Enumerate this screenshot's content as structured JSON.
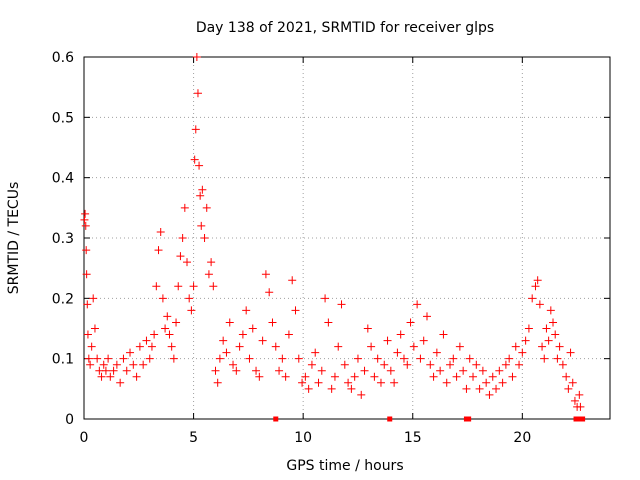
{
  "chart_data": {
    "type": "scatter",
    "title": "Day 138 of 2021, SRMTID for receiver glps",
    "xlabel": "GPS time / hours",
    "ylabel": "SRMTID / TECUs",
    "xlim": [
      0,
      24
    ],
    "ylim": [
      0,
      0.6
    ],
    "xticks": [
      0,
      5,
      10,
      15,
      20
    ],
    "xtick_labels": [
      "0",
      "5",
      "10",
      "15",
      "20"
    ],
    "yticks": [
      0,
      0.1,
      0.2,
      0.3,
      0.4,
      0.5,
      0.6
    ],
    "ytick_labels": [
      "0",
      "0.1",
      "0.2",
      "0.3",
      "0.4",
      "0.5",
      "0.6"
    ],
    "grid": true,
    "marker": "+",
    "color": "#ff0000",
    "series": [
      {
        "name": "SRMTID",
        "x": [
          0.02,
          0.05,
          0.08,
          0.1,
          0.12,
          0.15,
          0.18,
          0.22,
          0.28,
          0.35,
          0.42,
          0.5,
          0.6,
          0.7,
          0.8,
          0.9,
          1.0,
          1.1,
          1.2,
          1.35,
          1.5,
          1.65,
          1.8,
          1.95,
          2.1,
          2.25,
          2.4,
          2.55,
          2.7,
          2.85,
          3.0,
          3.1,
          3.2,
          3.3,
          3.4,
          3.5,
          3.6,
          3.7,
          3.8,
          3.9,
          4.0,
          4.1,
          4.2,
          4.3,
          4.4,
          4.5,
          4.6,
          4.7,
          4.8,
          4.9,
          5.0,
          5.05,
          5.1,
          5.15,
          5.2,
          5.25,
          5.3,
          5.35,
          5.4,
          5.5,
          5.6,
          5.7,
          5.8,
          5.9,
          6.0,
          6.1,
          6.2,
          6.35,
          6.5,
          6.65,
          6.8,
          6.95,
          7.1,
          7.25,
          7.4,
          7.55,
          7.7,
          7.85,
          8.0,
          8.15,
          8.3,
          8.45,
          8.6,
          8.75,
          8.9,
          9.05,
          9.2,
          9.35,
          9.5,
          9.65,
          9.8,
          9.95,
          10.1,
          10.25,
          10.4,
          10.55,
          10.7,
          10.85,
          11.0,
          11.15,
          11.3,
          11.45,
          11.6,
          11.75,
          11.9,
          12.05,
          12.2,
          12.35,
          12.5,
          12.65,
          12.8,
          12.95,
          13.1,
          13.25,
          13.4,
          13.55,
          13.7,
          13.85,
          14.0,
          14.15,
          14.3,
          14.45,
          14.6,
          14.75,
          14.9,
          15.05,
          15.2,
          15.35,
          15.5,
          15.65,
          15.8,
          15.95,
          16.1,
          16.25,
          16.4,
          16.55,
          16.7,
          16.85,
          17.0,
          17.15,
          17.3,
          17.45,
          17.6,
          17.75,
          17.9,
          18.05,
          18.2,
          18.35,
          18.5,
          18.65,
          18.8,
          18.95,
          19.1,
          19.25,
          19.4,
          19.55,
          19.7,
          19.85,
          20.0,
          20.15,
          20.3,
          20.45,
          20.6,
          20.7,
          20.8,
          20.9,
          21.0,
          21.1,
          21.2,
          21.3,
          21.4,
          21.5,
          21.6,
          21.7,
          21.85,
          22.0,
          22.1,
          22.2,
          22.3,
          22.4,
          22.5,
          22.6,
          22.65
        ],
        "y": [
          0.33,
          0.34,
          0.32,
          0.28,
          0.24,
          0.19,
          0.14,
          0.1,
          0.09,
          0.12,
          0.2,
          0.15,
          0.1,
          0.08,
          0.07,
          0.09,
          0.08,
          0.1,
          0.07,
          0.08,
          0.09,
          0.06,
          0.1,
          0.08,
          0.11,
          0.09,
          0.07,
          0.12,
          0.09,
          0.13,
          0.1,
          0.12,
          0.14,
          0.22,
          0.28,
          0.31,
          0.2,
          0.15,
          0.17,
          0.14,
          0.12,
          0.1,
          0.16,
          0.22,
          0.27,
          0.3,
          0.35,
          0.26,
          0.2,
          0.18,
          0.22,
          0.43,
          0.48,
          0.6,
          0.54,
          0.42,
          0.37,
          0.32,
          0.38,
          0.3,
          0.35,
          0.24,
          0.26,
          0.22,
          0.08,
          0.06,
          0.1,
          0.13,
          0.11,
          0.16,
          0.09,
          0.08,
          0.12,
          0.14,
          0.18,
          0.1,
          0.15,
          0.08,
          0.07,
          0.13,
          0.24,
          0.21,
          0.16,
          0.12,
          0.08,
          0.1,
          0.07,
          0.14,
          0.23,
          0.18,
          0.1,
          0.06,
          0.07,
          0.05,
          0.09,
          0.11,
          0.06,
          0.08,
          0.2,
          0.16,
          0.05,
          0.07,
          0.12,
          0.19,
          0.09,
          0.06,
          0.05,
          0.07,
          0.1,
          0.04,
          0.08,
          0.15,
          0.12,
          0.07,
          0.1,
          0.06,
          0.09,
          0.13,
          0.08,
          0.06,
          0.11,
          0.14,
          0.1,
          0.09,
          0.16,
          0.12,
          0.19,
          0.1,
          0.13,
          0.17,
          0.09,
          0.07,
          0.11,
          0.08,
          0.14,
          0.06,
          0.09,
          0.1,
          0.07,
          0.12,
          0.08,
          0.05,
          0.1,
          0.07,
          0.09,
          0.05,
          0.08,
          0.06,
          0.04,
          0.07,
          0.05,
          0.08,
          0.06,
          0.09,
          0.1,
          0.07,
          0.12,
          0.09,
          0.11,
          0.13,
          0.15,
          0.2,
          0.22,
          0.23,
          0.19,
          0.12,
          0.1,
          0.15,
          0.13,
          0.18,
          0.16,
          0.14,
          0.1,
          0.12,
          0.09,
          0.07,
          0.05,
          0.11,
          0.06,
          0.03,
          0.02,
          0.04,
          0.02
        ]
      }
    ],
    "gap_markers_x": [
      8.75,
      13.95,
      17.45,
      17.55,
      22.45,
      22.55,
      22.75
    ]
  }
}
